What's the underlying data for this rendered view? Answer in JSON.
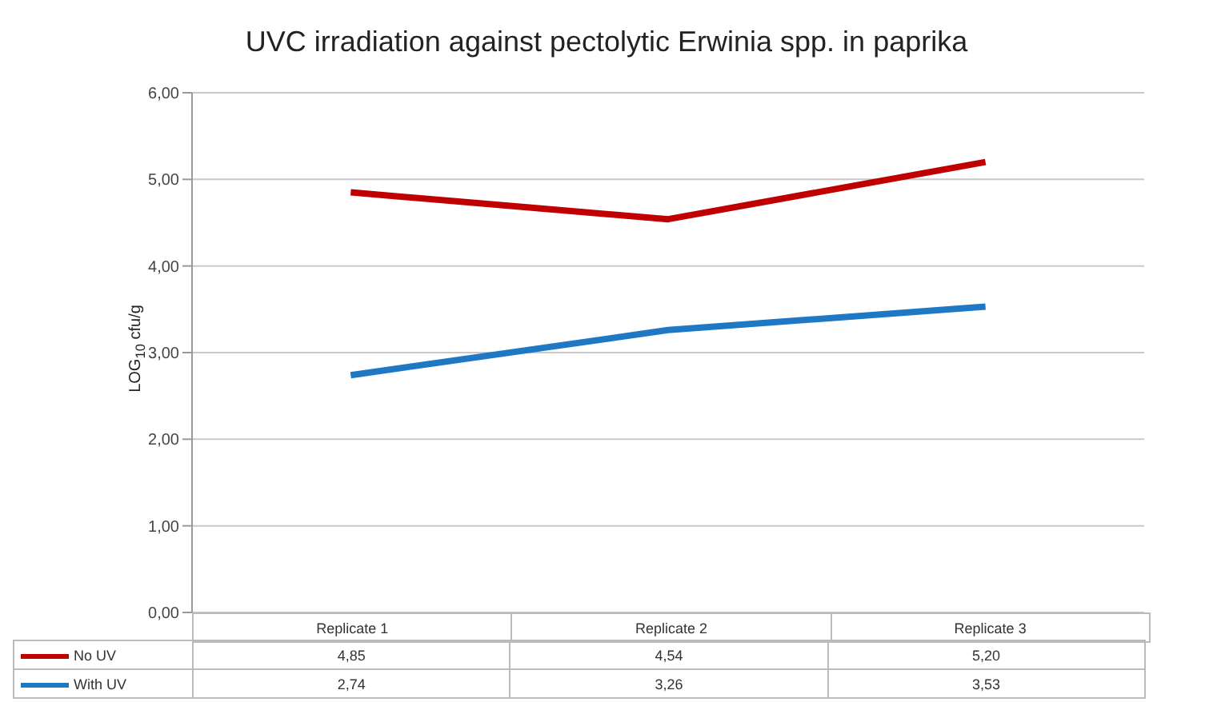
{
  "chart_data": {
    "type": "line",
    "title": "UVC irradiation against pectolytic Erwinia spp. in paprika",
    "ylabel": "LOG$_{10}$ cfu/g",
    "categories": [
      "Replicate 1",
      "Replicate 2",
      "Replicate 3"
    ],
    "series": [
      {
        "name": "No UV",
        "color": "#c00000",
        "values": [
          4.85,
          4.54,
          5.2
        ],
        "value_labels": [
          "4,85",
          "4,54",
          "5,20"
        ]
      },
      {
        "name": "With UV",
        "color": "#1f78c4",
        "values": [
          2.74,
          3.26,
          3.53
        ],
        "value_labels": [
          "2,74",
          "3,26",
          "3,53"
        ]
      }
    ],
    "ylim": [
      0,
      6
    ],
    "yticks": [
      {
        "value": 0,
        "label": "0,00"
      },
      {
        "value": 1,
        "label": "1,00"
      },
      {
        "value": 2,
        "label": "2,00"
      },
      {
        "value": 3,
        "label": "3,00"
      },
      {
        "value": 4,
        "label": "4,00"
      },
      {
        "value": 5,
        "label": "5,00"
      },
      {
        "value": 6,
        "label": "6,00"
      }
    ],
    "grid": "y",
    "legend": "bottom left",
    "marker": "none",
    "line_style": "solid"
  }
}
